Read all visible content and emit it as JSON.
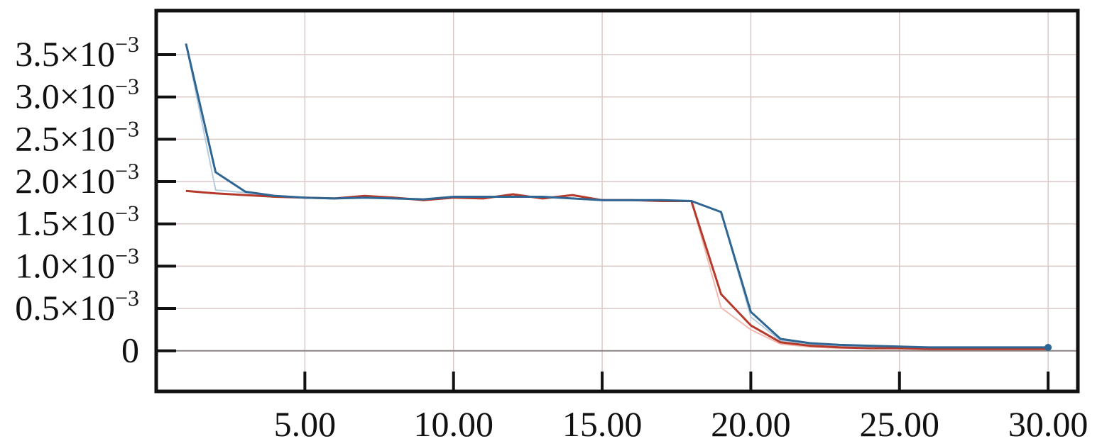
{
  "chart_data": {
    "type": "line",
    "title": "",
    "xlabel": "",
    "ylabel": "",
    "xlim": [
      0.0,
      31.0
    ],
    "ylim": [
      -0.00048,
      0.00402
    ],
    "grid": true,
    "x_ticks": [
      {
        "value": 5,
        "label": "5.00"
      },
      {
        "value": 10,
        "label": "10.00"
      },
      {
        "value": 15,
        "label": "15.00"
      },
      {
        "value": 20,
        "label": "20.00"
      },
      {
        "value": 25,
        "label": "25.00"
      },
      {
        "value": 30,
        "label": "30.00"
      }
    ],
    "y_ticks": [
      {
        "value": 0,
        "label": "0",
        "exp": ""
      },
      {
        "value": 0.0005,
        "label": "0.5×10",
        "exp": "−3"
      },
      {
        "value": 0.001,
        "label": "1.0×10",
        "exp": "−3"
      },
      {
        "value": 0.0015,
        "label": "1.5×10",
        "exp": "−3"
      },
      {
        "value": 0.002,
        "label": "2.0×10",
        "exp": "−3"
      },
      {
        "value": 0.0025,
        "label": "2.5×10",
        "exp": "−3"
      },
      {
        "value": 0.003,
        "label": "3.0×10",
        "exp": "−3"
      },
      {
        "value": 0.0035,
        "label": "3.5×10",
        "exp": "−3"
      }
    ],
    "x": [
      1,
      2,
      3,
      4,
      5,
      6,
      7,
      8,
      9,
      10,
      11,
      12,
      13,
      14,
      15,
      16,
      17,
      18,
      19,
      20,
      21,
      22,
      23,
      24,
      25,
      26,
      27,
      28,
      29,
      30
    ],
    "series": [
      {
        "color": "#f2b2aa",
        "opacity": 0.9,
        "width": 2,
        "values": [
          0.00189,
          0.00186,
          0.00184,
          0.00182,
          0.00181,
          0.0018,
          0.00183,
          0.00181,
          0.00178,
          0.00181,
          0.0018,
          0.00185,
          0.0018,
          0.00184,
          0.00178,
          0.00178,
          0.00177,
          0.00177,
          0.00051,
          0.00025,
          8e-05,
          4.5e-05,
          3e-05,
          3e-05,
          2.5e-05,
          2e-05,
          2e-05,
          2e-05,
          2e-05,
          2e-05
        ]
      },
      {
        "color": "#aec8dc",
        "opacity": 0.9,
        "width": 2,
        "values": [
          0.00363,
          0.0019,
          0.00187,
          0.00183,
          0.00181,
          0.0018,
          0.00181,
          0.0018,
          0.00179,
          0.00182,
          0.00182,
          0.00182,
          0.00182,
          0.0018,
          0.00178,
          0.00178,
          0.00178,
          0.00177,
          0.00164,
          0.0004,
          0.00012,
          7e-05,
          5e-05,
          4e-05,
          4e-05,
          3e-05,
          3e-05,
          3e-05,
          3e-05,
          3e-05
        ]
      },
      {
        "color": "#b53a2c",
        "opacity": 1,
        "width": 3,
        "values": [
          0.00189,
          0.00186,
          0.00184,
          0.00182,
          0.00181,
          0.0018,
          0.00183,
          0.00181,
          0.00178,
          0.00181,
          0.0018,
          0.00185,
          0.0018,
          0.00184,
          0.00178,
          0.00178,
          0.00177,
          0.00177,
          0.00067,
          0.0003,
          0.0001,
          6e-05,
          4e-05,
          3e-05,
          3e-05,
          2e-05,
          2e-05,
          2e-05,
          2e-05,
          2e-05
        ]
      },
      {
        "color": "#2e6593",
        "opacity": 1,
        "width": 3,
        "values": [
          0.00363,
          0.00211,
          0.00188,
          0.00183,
          0.00181,
          0.0018,
          0.00181,
          0.0018,
          0.00179,
          0.00182,
          0.00182,
          0.00182,
          0.00182,
          0.0018,
          0.00178,
          0.00178,
          0.00178,
          0.00177,
          0.00164,
          0.00046,
          0.00014,
          9e-05,
          7e-05,
          6e-05,
          5e-05,
          4e-05,
          4e-05,
          4e-05,
          4e-05,
          4e-05
        ],
        "end_marker": true
      }
    ]
  }
}
